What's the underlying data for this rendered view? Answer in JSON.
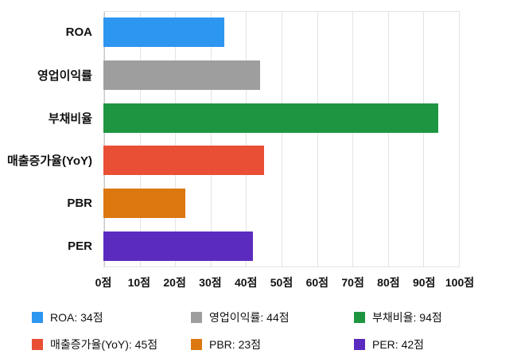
{
  "chart_data": {
    "type": "bar",
    "orientation": "horizontal",
    "title": "",
    "categories": [
      "ROA",
      "영업이익률",
      "부채비율",
      "매출증가율(YoY)",
      "PBR",
      "PER"
    ],
    "values": [
      34,
      44,
      94,
      45,
      23,
      42
    ],
    "unit": "점",
    "colors": [
      "#2D96F0",
      "#9E9E9E",
      "#1E9641",
      "#E94F35",
      "#DC7810",
      "#5B2BC0"
    ],
    "xlim": [
      0,
      100
    ],
    "tick_step": 10,
    "x_tick_labels": [
      "0점",
      "10점",
      "20점",
      "30점",
      "40점",
      "50점",
      "60점",
      "70점",
      "80점",
      "90점",
      "100점"
    ],
    "grid": true,
    "grid_color": "#e4e4e4",
    "legend_position": "bottom"
  },
  "legend": {
    "items": [
      {
        "label": "ROA: 34점",
        "color": "#2D96F0"
      },
      {
        "label": "영업이익률: 44점",
        "color": "#9E9E9E"
      },
      {
        "label": "부채비율: 94점",
        "color": "#1E9641"
      },
      {
        "label": "매출증가율(YoY): 45점",
        "color": "#E94F35"
      },
      {
        "label": "PBR: 23점",
        "color": "#DC7810"
      },
      {
        "label": "PER: 42점",
        "color": "#5B2BC0"
      }
    ]
  }
}
